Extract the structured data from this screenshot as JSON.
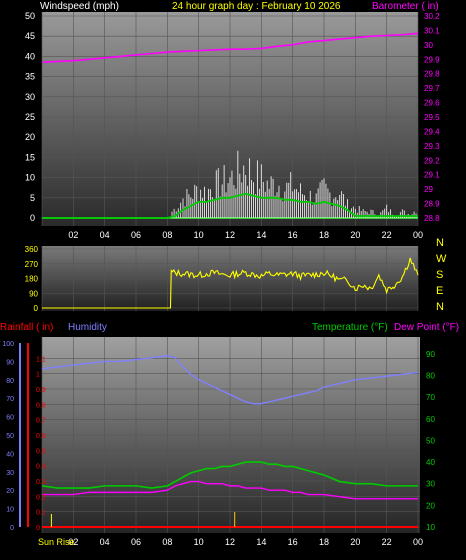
{
  "header": {
    "windspeed_label": "Windspeed (mph)",
    "date_title": "24 hour graph day : February 10 2026",
    "barometer_label": "Barometer ( in)"
  },
  "labels": {
    "rainfall": "Rainfall ( in)",
    "humidity": "Humidity",
    "temperature": "Temperature (°F)",
    "dewpoint": "Dew Point (°F)",
    "sunrise": "Sun Rise"
  },
  "colors": {
    "windspeed": "#ffffff",
    "gust": "#ffffff",
    "wind_avg": "#00cc00",
    "barometer": "#ff00ff",
    "direction": "#ffff00",
    "rainfall": "#ff0000",
    "humidity": "#8080ff",
    "temperature": "#00cc00",
    "dewpoint": "#ff00ff",
    "title": "#ffff00",
    "temp_axis": "#00cc00"
  },
  "chart_data": [
    {
      "type": "line",
      "name": "wind-and-barometer",
      "xlabel": "",
      "x_ticks": [
        "02",
        "04",
        "06",
        "08",
        "10",
        "12",
        "14",
        "16",
        "18",
        "20",
        "22",
        "00"
      ],
      "ylabel_left": "Windspeed (mph)",
      "ylim_left": [
        0,
        50
      ],
      "yticks_left": [
        0,
        5,
        10,
        15,
        20,
        25,
        30,
        35,
        40,
        45,
        50
      ],
      "ylabel_right": "Barometer ( in)",
      "ylim_right": [
        29.8,
        30.2
      ],
      "yticks_right": [
        "28.8",
        "28.9",
        "29",
        "29.1",
        "29.2",
        "29.3",
        "29.4",
        "29.5",
        "29.6",
        "29.7",
        "29.8",
        "29.9",
        "30",
        "30.1",
        "30.2"
      ],
      "series": [
        {
          "name": "Windspeed (mph)",
          "kind": "wind_gust",
          "hours": [
            0,
            8,
            8.3,
            8.7,
            9,
            9.5,
            10,
            10.5,
            11,
            11.5,
            12,
            12.5,
            13,
            13.5,
            14,
            14.5,
            15,
            15.5,
            16,
            16.5,
            17,
            17.5,
            18,
            18.5,
            19,
            19.5,
            20,
            20.5,
            21,
            21.5,
            22,
            22.5,
            23,
            23.5,
            24
          ],
          "values": [
            0,
            0,
            2,
            4,
            6,
            7,
            9,
            8,
            10,
            11,
            12,
            14,
            16,
            13,
            12,
            10,
            11,
            9,
            10,
            8,
            7,
            6,
            9,
            7,
            8,
            4,
            3,
            2,
            2,
            1,
            3,
            1,
            2,
            1,
            3
          ]
        },
        {
          "name": "Average",
          "kind": "wind_avg",
          "hours": [
            0,
            8,
            8.5,
            9,
            9.5,
            10,
            10.5,
            11,
            11.5,
            12,
            12.5,
            13,
            13.5,
            14,
            14.5,
            15,
            15.5,
            16,
            16.5,
            17,
            17.5,
            18,
            18.5,
            19,
            19.5,
            20,
            24
          ],
          "values": [
            0,
            0,
            0.5,
            2,
            3,
            4,
            4,
            4.5,
            5,
            5,
            5.5,
            6,
            5.5,
            5,
            5,
            5,
            4.5,
            4.5,
            4,
            4,
            3.5,
            4,
            3.5,
            3,
            2,
            0.5,
            0.5
          ]
        },
        {
          "name": "Barometer ( in)",
          "kind": "barometer",
          "hours": [
            0,
            1,
            2,
            3,
            4,
            5,
            6,
            7,
            8,
            9,
            10,
            11,
            12,
            13,
            14,
            15,
            16,
            17,
            18,
            19,
            20,
            21,
            22,
            23,
            24
          ],
          "values": [
            29.88,
            29.885,
            29.89,
            29.9,
            29.91,
            29.92,
            29.93,
            29.94,
            29.95,
            29.955,
            29.96,
            29.965,
            29.97,
            29.97,
            29.975,
            29.99,
            30.0,
            30.02,
            30.03,
            30.04,
            30.05,
            30.06,
            30.065,
            30.07,
            30.08
          ]
        }
      ]
    },
    {
      "type": "line",
      "name": "wind-direction",
      "x_ticks": [
        "02",
        "04",
        "06",
        "08",
        "10",
        "12",
        "14",
        "16",
        "18",
        "20",
        "22",
        "00"
      ],
      "ylim": [
        0,
        360
      ],
      "yticks": [
        0,
        90,
        180,
        270,
        360
      ],
      "direction_letters": [
        "N",
        "W",
        "S",
        "E",
        "N"
      ],
      "series": [
        {
          "name": "Wind Direction",
          "hours": [
            0,
            8.2,
            8.25,
            8.5,
            9,
            9.5,
            10,
            10.5,
            11,
            11.5,
            12,
            12.5,
            13,
            13.5,
            14,
            14.5,
            15,
            15.5,
            16,
            16.5,
            17,
            17.5,
            18,
            18.5,
            19,
            19.5,
            20,
            20.5,
            21,
            21.5,
            22,
            22.5,
            23,
            23.5,
            24
          ],
          "values": [
            0,
            0,
            220,
            215,
            210,
            205,
            200,
            210,
            215,
            205,
            200,
            210,
            215,
            205,
            195,
            210,
            200,
            205,
            210,
            195,
            200,
            205,
            215,
            195,
            170,
            170,
            120,
            140,
            120,
            200,
            110,
            140,
            190,
            300,
            200
          ]
        }
      ]
    },
    {
      "type": "line",
      "name": "temperature-humidity-rain",
      "x_ticks": [
        "02",
        "04",
        "06",
        "08",
        "10",
        "12",
        "14",
        "16",
        "18",
        "20",
        "22",
        "00"
      ],
      "ylim_humidity": [
        0,
        100
      ],
      "yticks_humidity": [
        0,
        10,
        20,
        30,
        40,
        50,
        60,
        70,
        80,
        90,
        100
      ],
      "ylim_rain": [
        0,
        1.2
      ],
      "yticks_rain": [
        "0",
        "0.1",
        "0.2",
        "0.3",
        "0.4",
        "0.5",
        "0.6",
        "0.7",
        "0.8",
        "0.9",
        "1",
        "1.1"
      ],
      "ylim_temp": [
        10,
        95
      ],
      "yticks_temp": [
        10,
        20,
        30,
        40,
        50,
        60,
        70,
        80,
        90
      ],
      "series": [
        {
          "name": "Humidity",
          "axis": "humidity",
          "hours": [
            0,
            1,
            2,
            3,
            4,
            5,
            6,
            7,
            8,
            8.5,
            9,
            9.5,
            10,
            10.5,
            11,
            11.5,
            12,
            12.5,
            13,
            13.5,
            14,
            14.5,
            15,
            15.5,
            16,
            16.5,
            17,
            17.5,
            18,
            19,
            20,
            21,
            22,
            23,
            24
          ],
          "values": [
            86,
            87,
            88,
            89,
            90,
            90,
            91,
            92,
            93,
            92,
            87,
            83,
            80,
            78,
            76,
            74,
            72,
            70,
            68,
            67,
            67,
            68,
            69,
            70,
            71,
            72,
            73,
            74,
            76,
            78,
            80,
            81,
            82,
            83,
            84
          ]
        },
        {
          "name": "Temperature (°F)",
          "axis": "temp",
          "hours": [
            0,
            1,
            2,
            3,
            4,
            5,
            6,
            7,
            8,
            8.5,
            9,
            9.5,
            10,
            10.5,
            11,
            11.5,
            12,
            12.5,
            13,
            13.5,
            14,
            14.5,
            15,
            15.5,
            16,
            16.5,
            17,
            17.5,
            18,
            19,
            20,
            21,
            22,
            23,
            24
          ],
          "values": [
            29,
            28,
            28,
            28,
            29,
            29,
            29,
            28,
            29,
            31,
            33,
            35,
            36,
            37,
            37,
            38,
            38,
            39,
            40,
            40,
            40,
            39,
            39,
            38,
            38,
            37,
            36,
            35,
            34,
            31,
            30,
            30,
            29,
            29,
            29
          ]
        },
        {
          "name": "Dew Point (°F)",
          "axis": "temp",
          "hours": [
            0,
            1,
            2,
            3,
            4,
            5,
            6,
            7,
            8,
            8.5,
            9,
            9.5,
            10,
            10.5,
            11,
            11.5,
            12,
            12.5,
            13,
            13.5,
            14,
            14.5,
            15,
            15.5,
            16,
            16.5,
            17,
            17.5,
            18,
            19,
            20,
            21,
            22,
            23,
            24
          ],
          "values": [
            25,
            25,
            25,
            26,
            26,
            26,
            26,
            26,
            27,
            29,
            30,
            31,
            31,
            30,
            30,
            30,
            29,
            29,
            28,
            28,
            28,
            27,
            27,
            27,
            26,
            26,
            25,
            25,
            25,
            24,
            23,
            23,
            23,
            23,
            23
          ]
        },
        {
          "name": "Rainfall ( in)",
          "axis": "rain",
          "hours": [
            0,
            24
          ],
          "values": [
            0,
            0
          ]
        }
      ]
    }
  ]
}
